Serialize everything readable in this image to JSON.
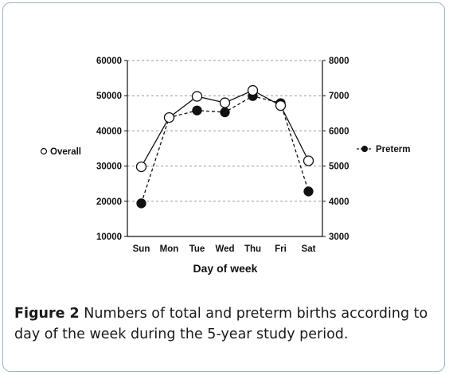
{
  "chart_data": {
    "type": "line",
    "categories": [
      "Sun",
      "Mon",
      "Tue",
      "Wed",
      "Thu",
      "Fri",
      "Sat"
    ],
    "xlabel": "Day of week",
    "y_left": {
      "min": 10000,
      "max": 60000,
      "ticks": [
        10000,
        20000,
        30000,
        40000,
        50000,
        60000
      ]
    },
    "y_right": {
      "min": 3000,
      "max": 8000,
      "ticks": [
        3000,
        4000,
        5000,
        6000,
        7000,
        8000
      ]
    },
    "grid": "horizontal dashed",
    "series": [
      {
        "name": "Overall",
        "axis": "left",
        "marker": "open-circle",
        "line": "solid",
        "values": [
          29800,
          43800,
          49800,
          48000,
          51500,
          47200,
          31500
        ]
      },
      {
        "name": "Preterm",
        "axis": "right",
        "marker": "filled-circle",
        "line": "dashed",
        "values": [
          3940,
          6380,
          6580,
          6530,
          6990,
          6790,
          4280
        ]
      }
    ],
    "legend": {
      "left": "Overall",
      "right": "Preterm"
    }
  },
  "caption": {
    "label": "Figure 2",
    "text": " Numbers of total and preterm births according to day of the week during the 5-year study period."
  }
}
